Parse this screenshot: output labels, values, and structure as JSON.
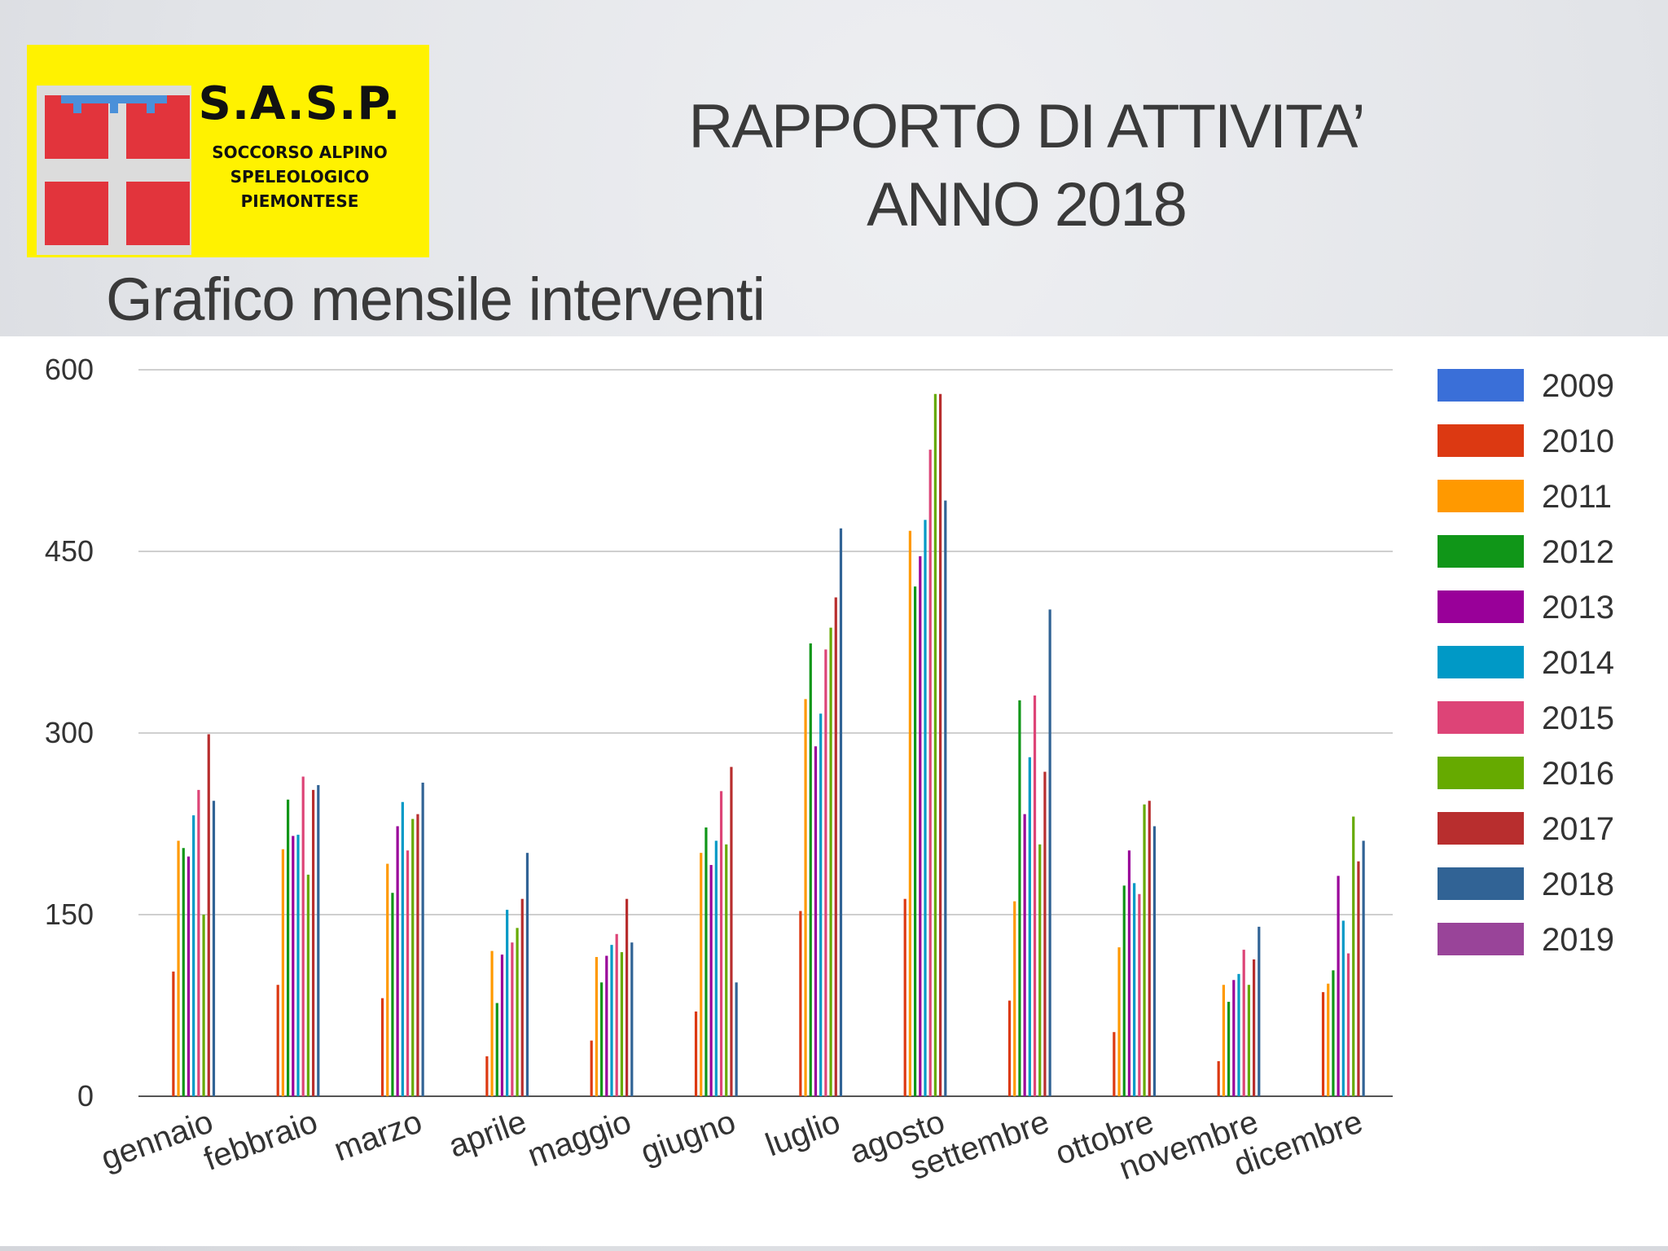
{
  "logo": {
    "title": "S.A.S.P.",
    "lines": [
      "SOCCORSO ALPINO",
      "SPELEOLOGICO",
      "PIEMONTESE"
    ]
  },
  "slide": {
    "title_line1": "RAPPORTO DI ATTIVITA’",
    "title_line2": "ANNO 2018",
    "subtitle": "Grafico mensile interventi"
  },
  "chart_data": {
    "type": "bar",
    "title": "",
    "xlabel": "",
    "ylabel": "",
    "ylim": [
      0,
      600
    ],
    "yticks": [
      0,
      150,
      300,
      450,
      600
    ],
    "ytick_labels": [
      "0",
      "150",
      "300",
      "450",
      "600"
    ],
    "grid": true,
    "legend_position": "right",
    "categories": [
      "gennaio",
      "febbraio",
      "marzo",
      "aprile",
      "maggio",
      "giugno",
      "luglio",
      "agosto",
      "settembre",
      "ottobre",
      "novembre",
      "dicembre"
    ],
    "series": [
      {
        "name": "2009",
        "color": "#3a6fd8",
        "values": [
          0,
          0,
          0,
          0,
          0,
          0,
          0,
          0,
          0,
          0,
          0,
          0
        ]
      },
      {
        "name": "2010",
        "color": "#dc3912",
        "values": [
          103,
          92,
          81,
          33,
          46,
          70,
          153,
          163,
          79,
          53,
          29,
          86
        ]
      },
      {
        "name": "2011",
        "color": "#ff9900",
        "values": [
          211,
          204,
          192,
          120,
          115,
          201,
          328,
          467,
          161,
          123,
          92,
          93
        ]
      },
      {
        "name": "2012",
        "color": "#109618",
        "values": [
          205,
          245,
          168,
          77,
          94,
          222,
          374,
          421,
          327,
          174,
          78,
          104
        ]
      },
      {
        "name": "2013",
        "color": "#990099",
        "values": [
          198,
          215,
          223,
          117,
          116,
          191,
          289,
          446,
          233,
          203,
          96,
          182
        ]
      },
      {
        "name": "2014",
        "color": "#0099c6",
        "values": [
          232,
          216,
          243,
          154,
          125,
          211,
          316,
          476,
          280,
          176,
          101,
          145
        ]
      },
      {
        "name": "2015",
        "color": "#dd4477",
        "values": [
          253,
          264,
          203,
          127,
          134,
          252,
          369,
          534,
          331,
          167,
          121,
          118
        ]
      },
      {
        "name": "2016",
        "color": "#66aa00",
        "values": [
          150,
          183,
          229,
          139,
          119,
          208,
          387,
          580,
          208,
          241,
          92,
          231
        ]
      },
      {
        "name": "2017",
        "color": "#b82e2e",
        "values": [
          299,
          253,
          233,
          163,
          163,
          272,
          412,
          580,
          268,
          244,
          113,
          194
        ]
      },
      {
        "name": "2018",
        "color": "#316395",
        "values": [
          244,
          257,
          259,
          201,
          127,
          94,
          469,
          492,
          402,
          223,
          140,
          211
        ]
      },
      {
        "name": "2019",
        "color": "#994499",
        "values": [
          0,
          0,
          0,
          0,
          0,
          0,
          0,
          0,
          0,
          0,
          0,
          0
        ]
      }
    ]
  }
}
